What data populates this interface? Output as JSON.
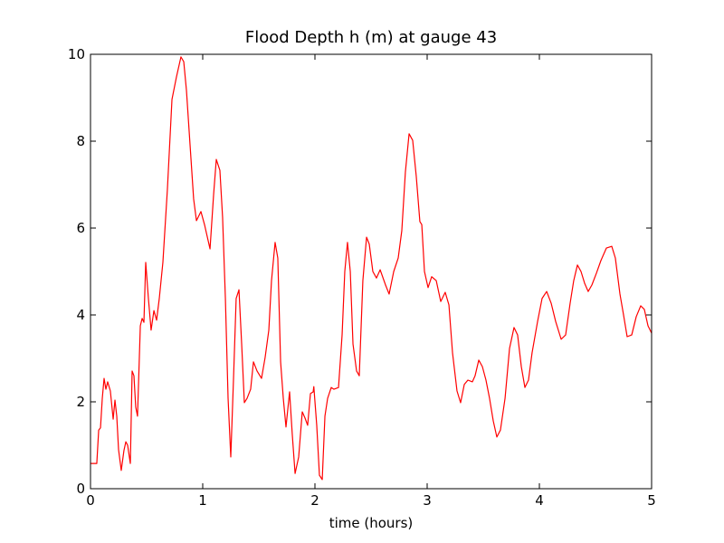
{
  "chart_data": {
    "type": "line",
    "title": "Flood Depth h (m) at gauge 43",
    "x_label": "time (hours)",
    "x": [
      0,
      0.056,
      0.073,
      0.089,
      0.105,
      0.121,
      0.137,
      0.153,
      0.177,
      0.202,
      0.218,
      0.234,
      0.25,
      0.274,
      0.298,
      0.315,
      0.331,
      0.355,
      0.371,
      0.387,
      0.403,
      0.419,
      0.444,
      0.46,
      0.476,
      0.492,
      0.516,
      0.54,
      0.565,
      0.589,
      0.613,
      0.645,
      0.685,
      0.726,
      0.766,
      0.806,
      0.831,
      0.855,
      0.887,
      0.919,
      0.944,
      0.984,
      1.016,
      1.065,
      1.097,
      1.121,
      1.153,
      1.177,
      1.202,
      1.226,
      1.25,
      1.274,
      1.298,
      1.323,
      1.347,
      1.371,
      1.395,
      1.427,
      1.452,
      1.484,
      1.524,
      1.556,
      1.589,
      1.613,
      1.645,
      1.669,
      1.694,
      1.718,
      1.742,
      1.774,
      1.798,
      1.823,
      1.855,
      1.887,
      1.911,
      1.935,
      1.96,
      1.984,
      1.99,
      2.016,
      2.04,
      2.065,
      2.089,
      2.113,
      2.145,
      2.169,
      2.21,
      2.242,
      2.266,
      2.29,
      2.315,
      2.339,
      2.371,
      2.395,
      2.427,
      2.46,
      2.484,
      2.516,
      2.548,
      2.581,
      2.629,
      2.661,
      2.702,
      2.742,
      2.774,
      2.806,
      2.839,
      2.871,
      2.903,
      2.935,
      2.952,
      2.976,
      3.008,
      3.04,
      3.081,
      3.121,
      3.161,
      3.194,
      3.226,
      3.266,
      3.298,
      3.331,
      3.363,
      3.403,
      3.427,
      3.46,
      3.492,
      3.524,
      3.556,
      3.589,
      3.621,
      3.653,
      3.694,
      3.734,
      3.774,
      3.806,
      3.839,
      3.871,
      3.903,
      3.935,
      3.984,
      4.024,
      4.065,
      4.105,
      4.145,
      4.194,
      4.234,
      4.274,
      4.306,
      4.339,
      4.371,
      4.403,
      4.435,
      4.468,
      4.508,
      4.548,
      4.597,
      4.645,
      4.677,
      4.718,
      4.75,
      4.782,
      4.823,
      4.863,
      4.903,
      4.935,
      4.968,
      5.0
    ],
    "series": [
      {
        "color": "#ff0000",
        "values": [
          0.58,
          0.58,
          1.35,
          1.4,
          2.08,
          2.54,
          2.29,
          2.46,
          2.25,
          1.6,
          2.04,
          1.67,
          0.9,
          0.42,
          0.88,
          1.08,
          1.0,
          0.58,
          2.71,
          2.6,
          1.88,
          1.67,
          3.75,
          3.92,
          3.83,
          5.21,
          4.38,
          3.65,
          4.1,
          3.88,
          4.38,
          5.21,
          6.88,
          8.96,
          9.48,
          9.94,
          9.83,
          9.17,
          7.92,
          6.67,
          6.17,
          6.38,
          6.08,
          5.52,
          6.77,
          7.58,
          7.33,
          6.25,
          4.38,
          2.08,
          0.73,
          2.5,
          4.38,
          4.58,
          3.33,
          1.98,
          2.08,
          2.29,
          2.92,
          2.71,
          2.54,
          3.02,
          3.65,
          4.79,
          5.67,
          5.31,
          2.92,
          2.08,
          1.42,
          2.23,
          1.25,
          0.35,
          0.73,
          1.77,
          1.63,
          1.46,
          2.19,
          2.23,
          2.35,
          1.46,
          0.31,
          0.21,
          1.67,
          2.08,
          2.33,
          2.29,
          2.33,
          3.54,
          5.0,
          5.67,
          5.0,
          3.33,
          2.71,
          2.6,
          4.79,
          5.79,
          5.63,
          5.0,
          4.85,
          5.04,
          4.69,
          4.48,
          5.0,
          5.31,
          5.94,
          7.29,
          8.17,
          8.02,
          7.19,
          6.15,
          6.08,
          5.0,
          4.63,
          4.88,
          4.79,
          4.31,
          4.52,
          4.23,
          3.13,
          2.25,
          1.98,
          2.4,
          2.5,
          2.46,
          2.6,
          2.96,
          2.81,
          2.5,
          2.08,
          1.56,
          1.19,
          1.35,
          2.08,
          3.23,
          3.71,
          3.54,
          2.81,
          2.33,
          2.5,
          3.13,
          3.85,
          4.38,
          4.54,
          4.27,
          3.85,
          3.44,
          3.54,
          4.27,
          4.79,
          5.15,
          5.0,
          4.73,
          4.54,
          4.69,
          4.96,
          5.25,
          5.54,
          5.58,
          5.31,
          4.48,
          4.0,
          3.5,
          3.54,
          3.96,
          4.21,
          4.13,
          3.75,
          3.58
        ]
      }
    ],
    "reference_line": {
      "value": 0,
      "color": "#000000"
    },
    "xlim": [
      0,
      5
    ],
    "xticks": [
      0,
      1,
      2,
      3,
      4,
      5
    ],
    "ylim": [
      0,
      10
    ],
    "yticks": [
      0,
      2,
      4,
      6,
      8,
      10
    ]
  }
}
